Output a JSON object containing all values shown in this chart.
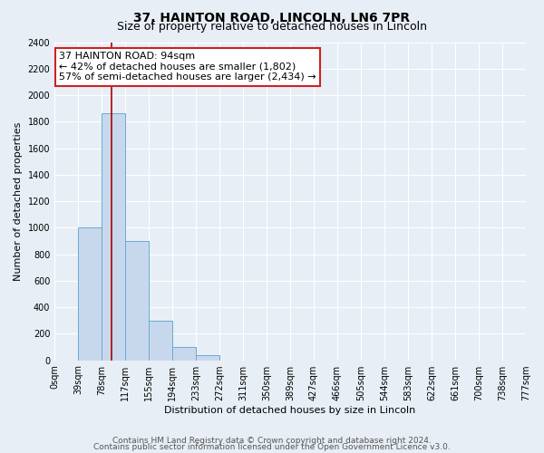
{
  "title": "37, HAINTON ROAD, LINCOLN, LN6 7PR",
  "subtitle": "Size of property relative to detached houses in Lincoln",
  "xlabel": "Distribution of detached houses by size in Lincoln",
  "ylabel": "Number of detached properties",
  "bin_edges": [
    0,
    39,
    78,
    117,
    155,
    194,
    233,
    272,
    311,
    350,
    389,
    427,
    466,
    505,
    544,
    583,
    622,
    661,
    700,
    738,
    777
  ],
  "bin_labels": [
    "0sqm",
    "39sqm",
    "78sqm",
    "117sqm",
    "155sqm",
    "194sqm",
    "233sqm",
    "272sqm",
    "311sqm",
    "350sqm",
    "389sqm",
    "427sqm",
    "466sqm",
    "505sqm",
    "544sqm",
    "583sqm",
    "622sqm",
    "661sqm",
    "700sqm",
    "738sqm",
    "777sqm"
  ],
  "counts": [
    0,
    1000,
    1860,
    900,
    300,
    100,
    40,
    0,
    0,
    0,
    0,
    0,
    0,
    0,
    0,
    0,
    0,
    0,
    0,
    0
  ],
  "bar_color": "#c8d8ec",
  "bar_edge_color": "#6aaad4",
  "property_size": 94,
  "vline_color": "#aa0000",
  "annotation_line1": "37 HAINTON ROAD: 94sqm",
  "annotation_line2": "← 42% of detached houses are smaller (1,802)",
  "annotation_line3": "57% of semi-detached houses are larger (2,434) →",
  "annotation_box_color": "#ffffff",
  "annotation_box_edge": "#cc2222",
  "ylim": [
    0,
    2400
  ],
  "yticks": [
    0,
    200,
    400,
    600,
    800,
    1000,
    1200,
    1400,
    1600,
    1800,
    2000,
    2200,
    2400
  ],
  "bg_color": "#e8eef6",
  "plot_bg_color": "#e8eef6",
  "footer1": "Contains HM Land Registry data © Crown copyright and database right 2024.",
  "footer2": "Contains public sector information licensed under the Open Government Licence v3.0.",
  "title_fontsize": 10,
  "subtitle_fontsize": 9,
  "xlabel_fontsize": 8,
  "ylabel_fontsize": 8,
  "tick_fontsize": 7,
  "annotation_fontsize": 8,
  "footer_fontsize": 6.5
}
